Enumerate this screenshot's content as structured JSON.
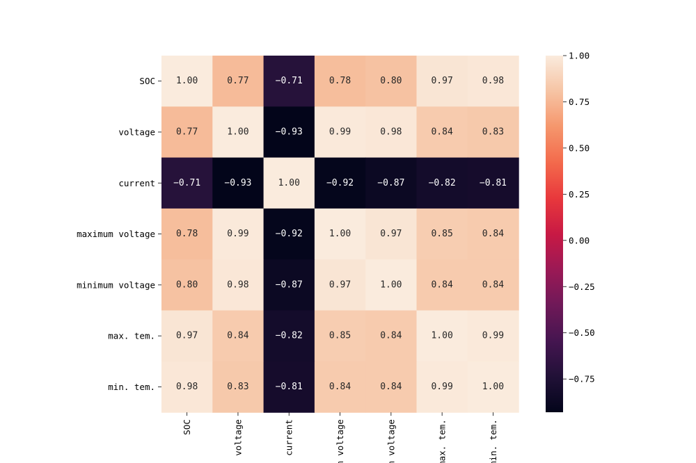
{
  "chart_data": {
    "type": "heatmap",
    "title": "",
    "xlabel": "",
    "ylabel": "",
    "row_labels": [
      "SOC",
      "voltage",
      "current",
      "maximum voltage",
      "minimum voltage",
      "max. tem.",
      "min. tem."
    ],
    "col_labels": [
      "SOC",
      "voltage",
      "current",
      "m voltage",
      "m voltage",
      "max. tem.",
      "min. tem."
    ],
    "values": [
      [
        1.0,
        0.77,
        -0.71,
        0.78,
        0.8,
        0.97,
        0.98
      ],
      [
        0.77,
        1.0,
        -0.93,
        0.99,
        0.98,
        0.84,
        0.83
      ],
      [
        -0.71,
        -0.93,
        1.0,
        -0.92,
        -0.87,
        -0.82,
        -0.81
      ],
      [
        0.78,
        0.99,
        -0.92,
        1.0,
        0.97,
        0.85,
        0.84
      ],
      [
        0.8,
        0.98,
        -0.87,
        0.97,
        1.0,
        0.84,
        0.84
      ],
      [
        0.97,
        0.84,
        -0.82,
        0.85,
        0.84,
        1.0,
        0.99
      ],
      [
        0.98,
        0.83,
        -0.81,
        0.84,
        0.84,
        0.99,
        1.0
      ]
    ],
    "colorbar": {
      "vmin": -0.93,
      "vmax": 1.0,
      "ticks": [
        1.0,
        0.75,
        0.5,
        0.25,
        0.0,
        -0.25,
        -0.5,
        -0.75
      ],
      "tick_labels": [
        "1.00",
        "0.75",
        "0.50",
        "0.25",
        "0.00",
        "−0.25",
        "−0.50",
        "−0.75"
      ]
    },
    "colormap": "rocket",
    "annotation_format": "0.00"
  }
}
